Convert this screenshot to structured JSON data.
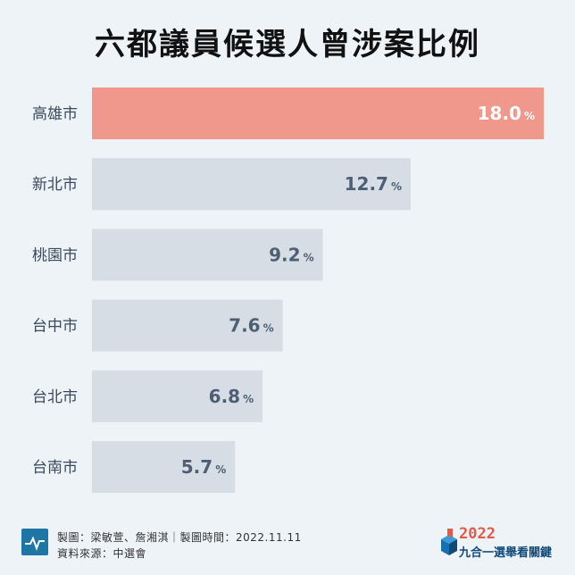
{
  "title": "六都議員候選人曾涉案比例",
  "chart_data": {
    "type": "bar",
    "orientation": "horizontal",
    "categories": [
      "高雄市",
      "新北市",
      "桃園市",
      "台中市",
      "台北市",
      "台南市"
    ],
    "values": [
      18.0,
      12.7,
      9.2,
      7.6,
      6.8,
      5.7
    ],
    "value_labels": [
      "18.0",
      "12.7",
      "9.2",
      "7.6",
      "6.8",
      "5.7"
    ],
    "unit": "%",
    "highlight_index": 0,
    "xlim": [
      0,
      18.0
    ]
  },
  "colors": {
    "highlight_bar": "#f0988c",
    "bar": "#d6dde5",
    "highlight_text": "#ffffff",
    "value_text": "#4f5f73",
    "category_text": "#3a4a5c"
  },
  "footer": {
    "credit_line1": "製圖：梁敏萱、詹湘淇｜製圖時間：2022.11.11",
    "credit_line2": "資料來源：中選會",
    "brand_year": "2022",
    "brand_name": "九合一選舉看關鍵"
  },
  "icons": {
    "footer_logo": "pulse-line-icon",
    "brand_logo": "ballot-cube-icon"
  }
}
